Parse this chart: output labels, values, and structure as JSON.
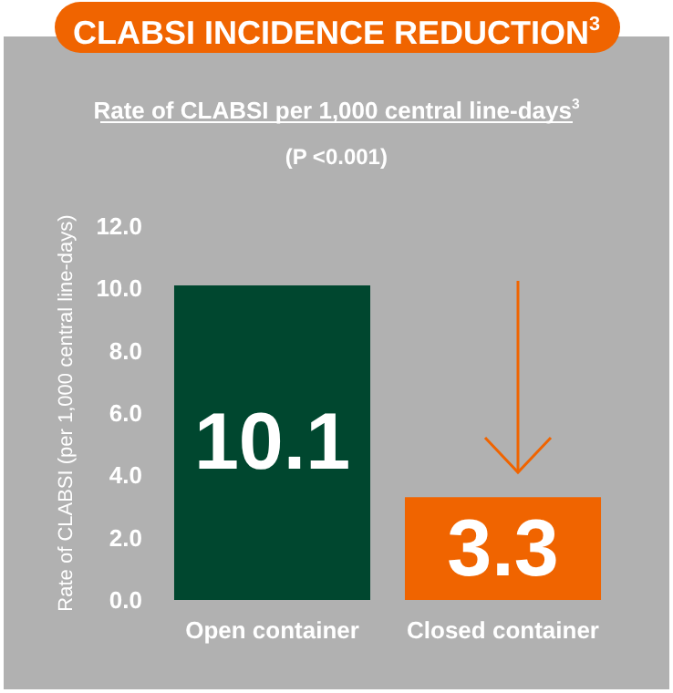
{
  "chart_data": {
    "type": "bar",
    "title": "CLABSI INCIDENCE REDUCTION$^{3}$",
    "subtitle": "Rate of CLABSI per 1,000 central line-days$^{3}$",
    "annotations": [
      "(P <0.001)"
    ],
    "ylabel": "Rate of CLABSI (per 1,000 central line-days)",
    "categories": [
      "Open container",
      "Closed container"
    ],
    "values": [
      10.1,
      3.3
    ],
    "colors": [
      "#00472f",
      "#f06400"
    ],
    "ylim": [
      0,
      12
    ],
    "yticks": [
      {
        "value": 0,
        "label": "0.0"
      },
      {
        "value": 2,
        "label": "2.0"
      },
      {
        "value": 4,
        "label": "4.0"
      },
      {
        "value": 6,
        "label": "6.0"
      },
      {
        "value": 8,
        "label": "8.0"
      },
      {
        "value": 10,
        "label": "10.0"
      },
      {
        "value": 12,
        "label": "12.0"
      }
    ],
    "data_labels": true,
    "grid": false
  }
}
